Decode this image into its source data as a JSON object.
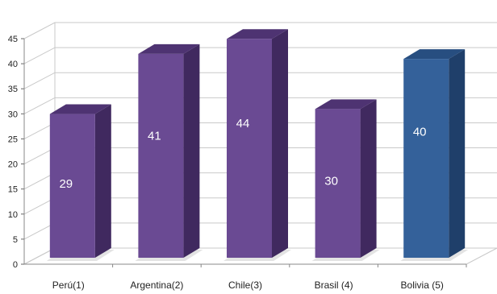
{
  "chart_data": {
    "type": "bar",
    "categories": [
      "Perú(1)",
      "Argentina(2)",
      "Chile(3)",
      "Brasil (4)",
      "Bolivia (5)"
    ],
    "values": [
      29,
      41,
      44,
      30,
      40
    ],
    "data_labels": [
      "29",
      "41",
      "44",
      "30",
      "40"
    ],
    "ylim": [
      0,
      45
    ],
    "yticks": [
      "0",
      "5",
      "10",
      "15",
      "20",
      "25",
      "30",
      "35",
      "40",
      "45"
    ],
    "grid": true,
    "style": "3d-column",
    "colors": {
      "bar_front": "#6a4a93",
      "bar_side": "#40295f",
      "bar_top": "#4e3372",
      "highlight_front": "#34619a",
      "highlight_side": "#1f3f6a",
      "highlight_top": "#274e80",
      "grid": "#c9c9c9"
    },
    "highlight_index": 4
  }
}
